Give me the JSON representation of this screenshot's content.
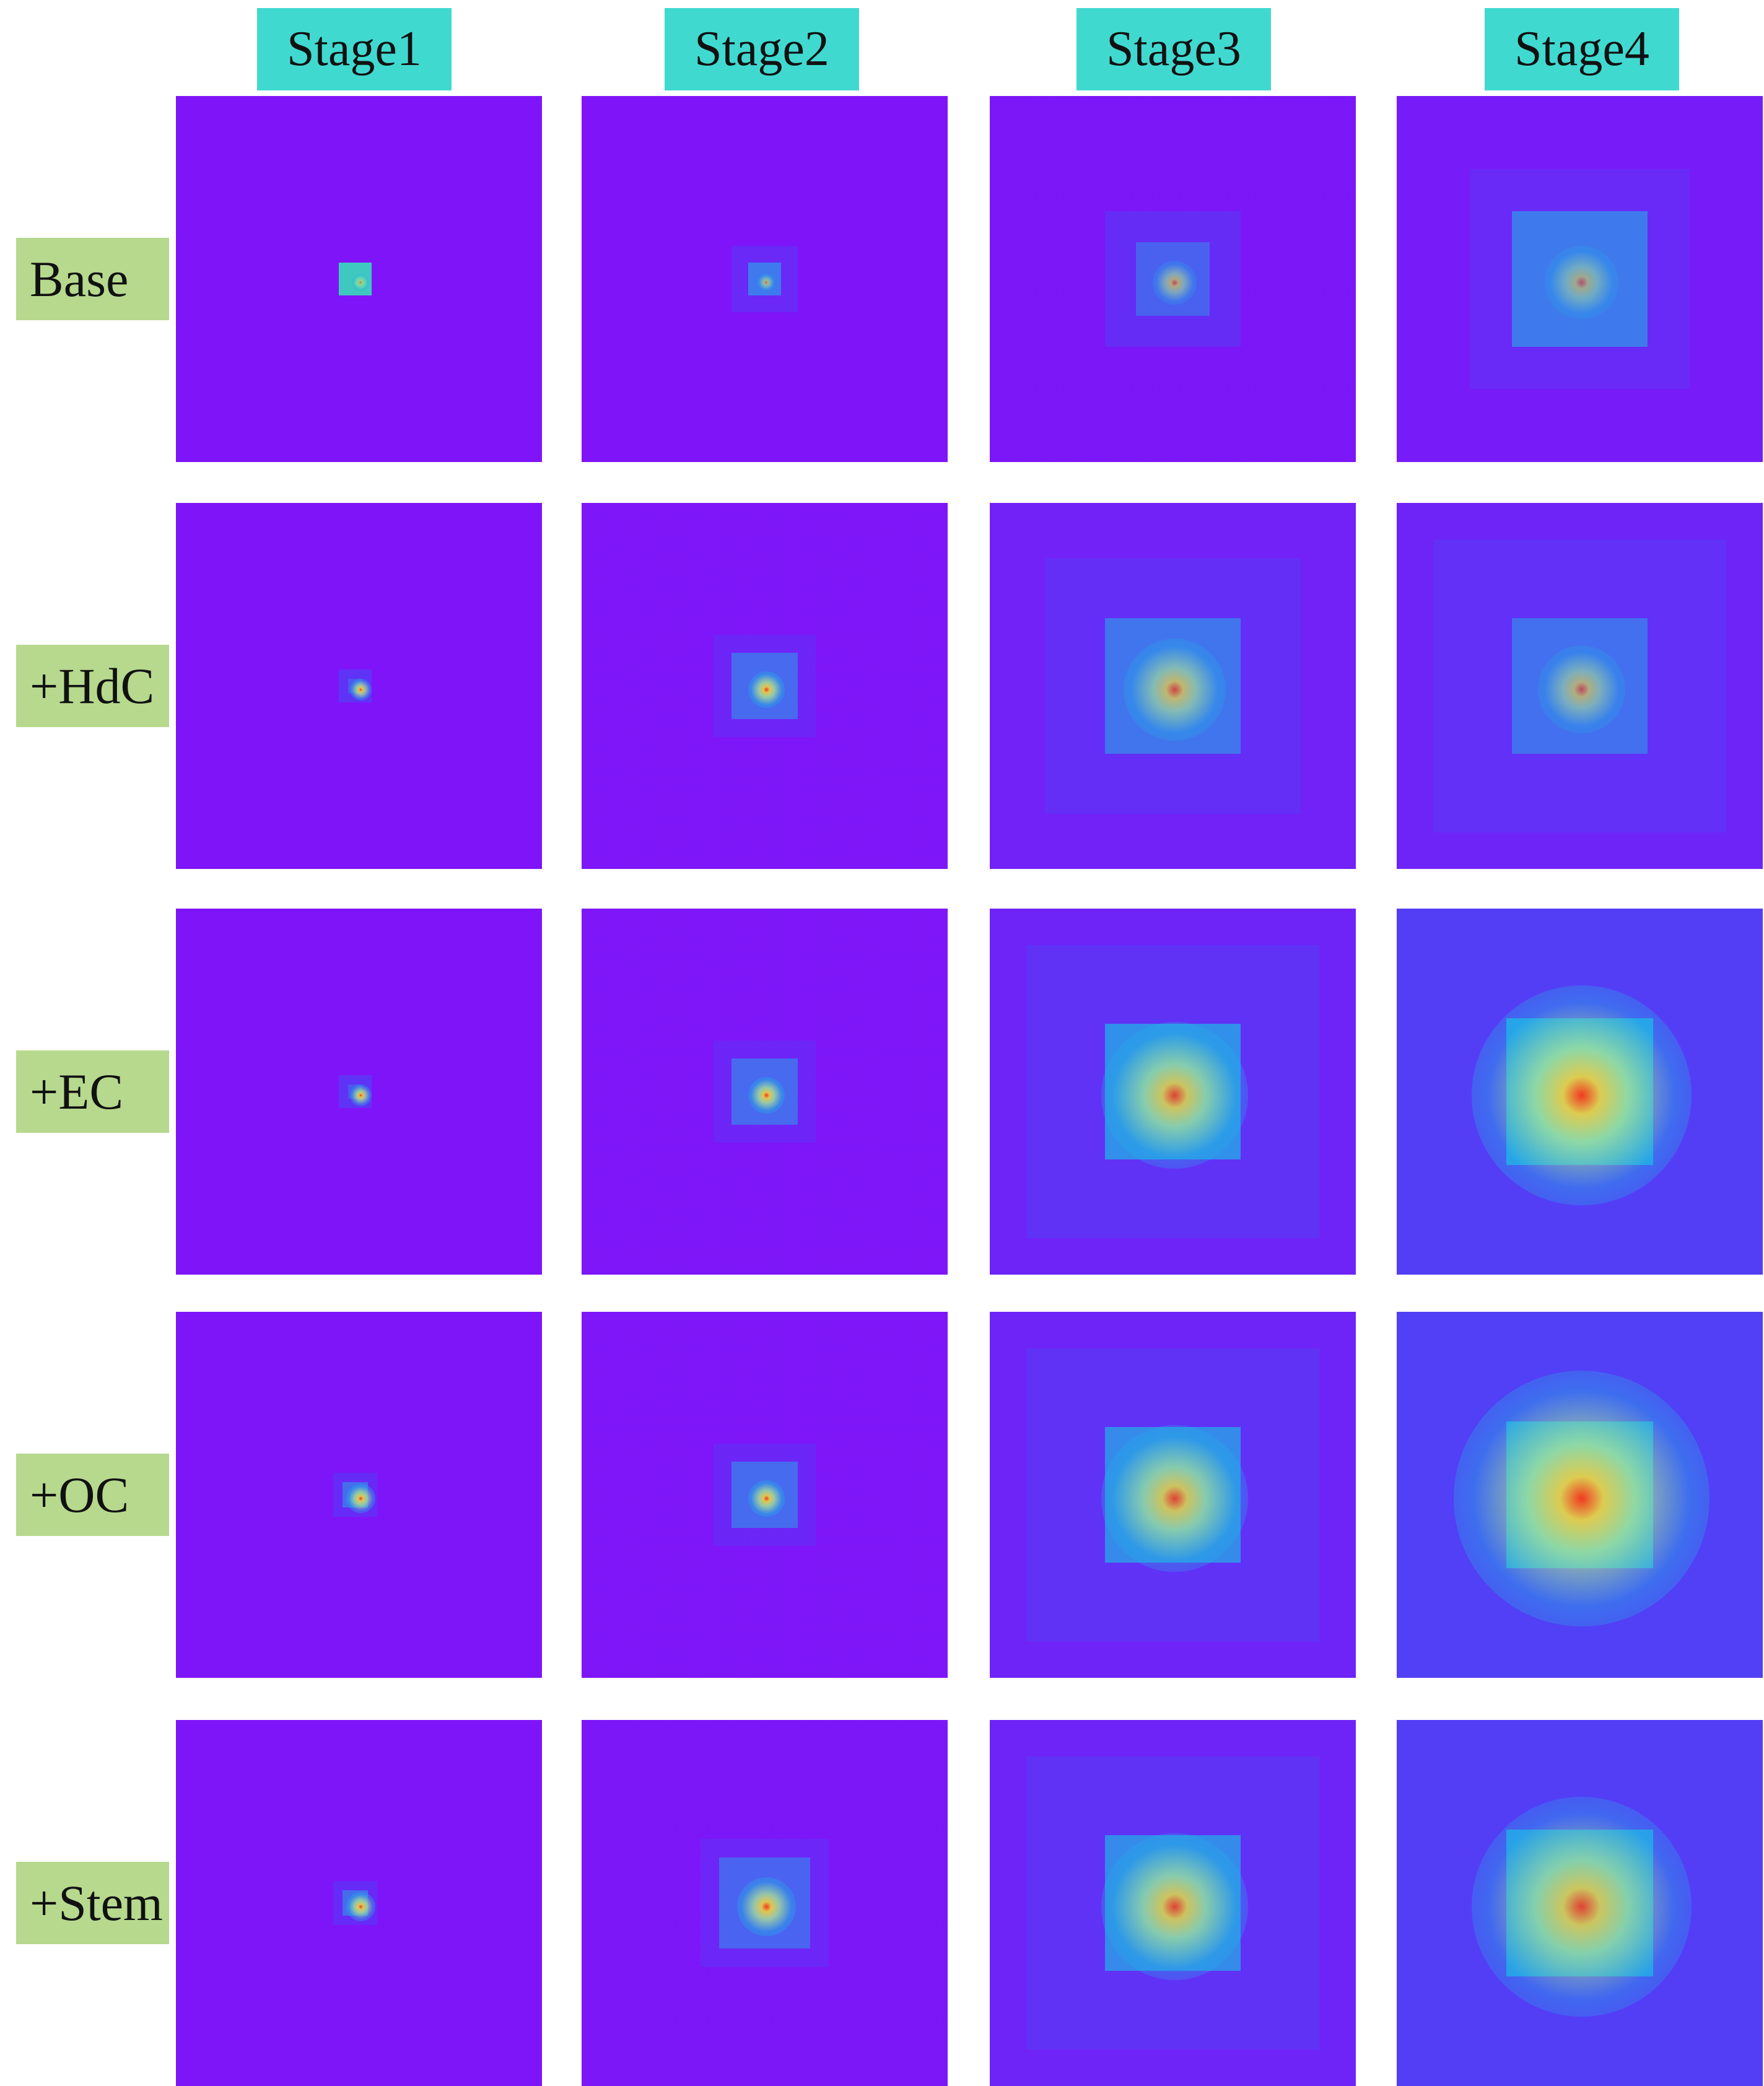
{
  "column_headers": [
    "Stage1",
    "Stage2",
    "Stage3",
    "Stage4"
  ],
  "row_labels": [
    "Base",
    "+HdC",
    "+EC",
    "+OC",
    "+Stem"
  ],
  "colors": {
    "header_bg": "#40d9d0",
    "label_bg": "#b6d98e",
    "heatmap_low": "#7f14f8",
    "heatmap_mid": "#4a48f5",
    "heatmap_high_mid": "#22b0e6",
    "heatmap_warm": "#b8f08a",
    "heatmap_peak": "#f03a20"
  },
  "colormap": "rainbow"
}
